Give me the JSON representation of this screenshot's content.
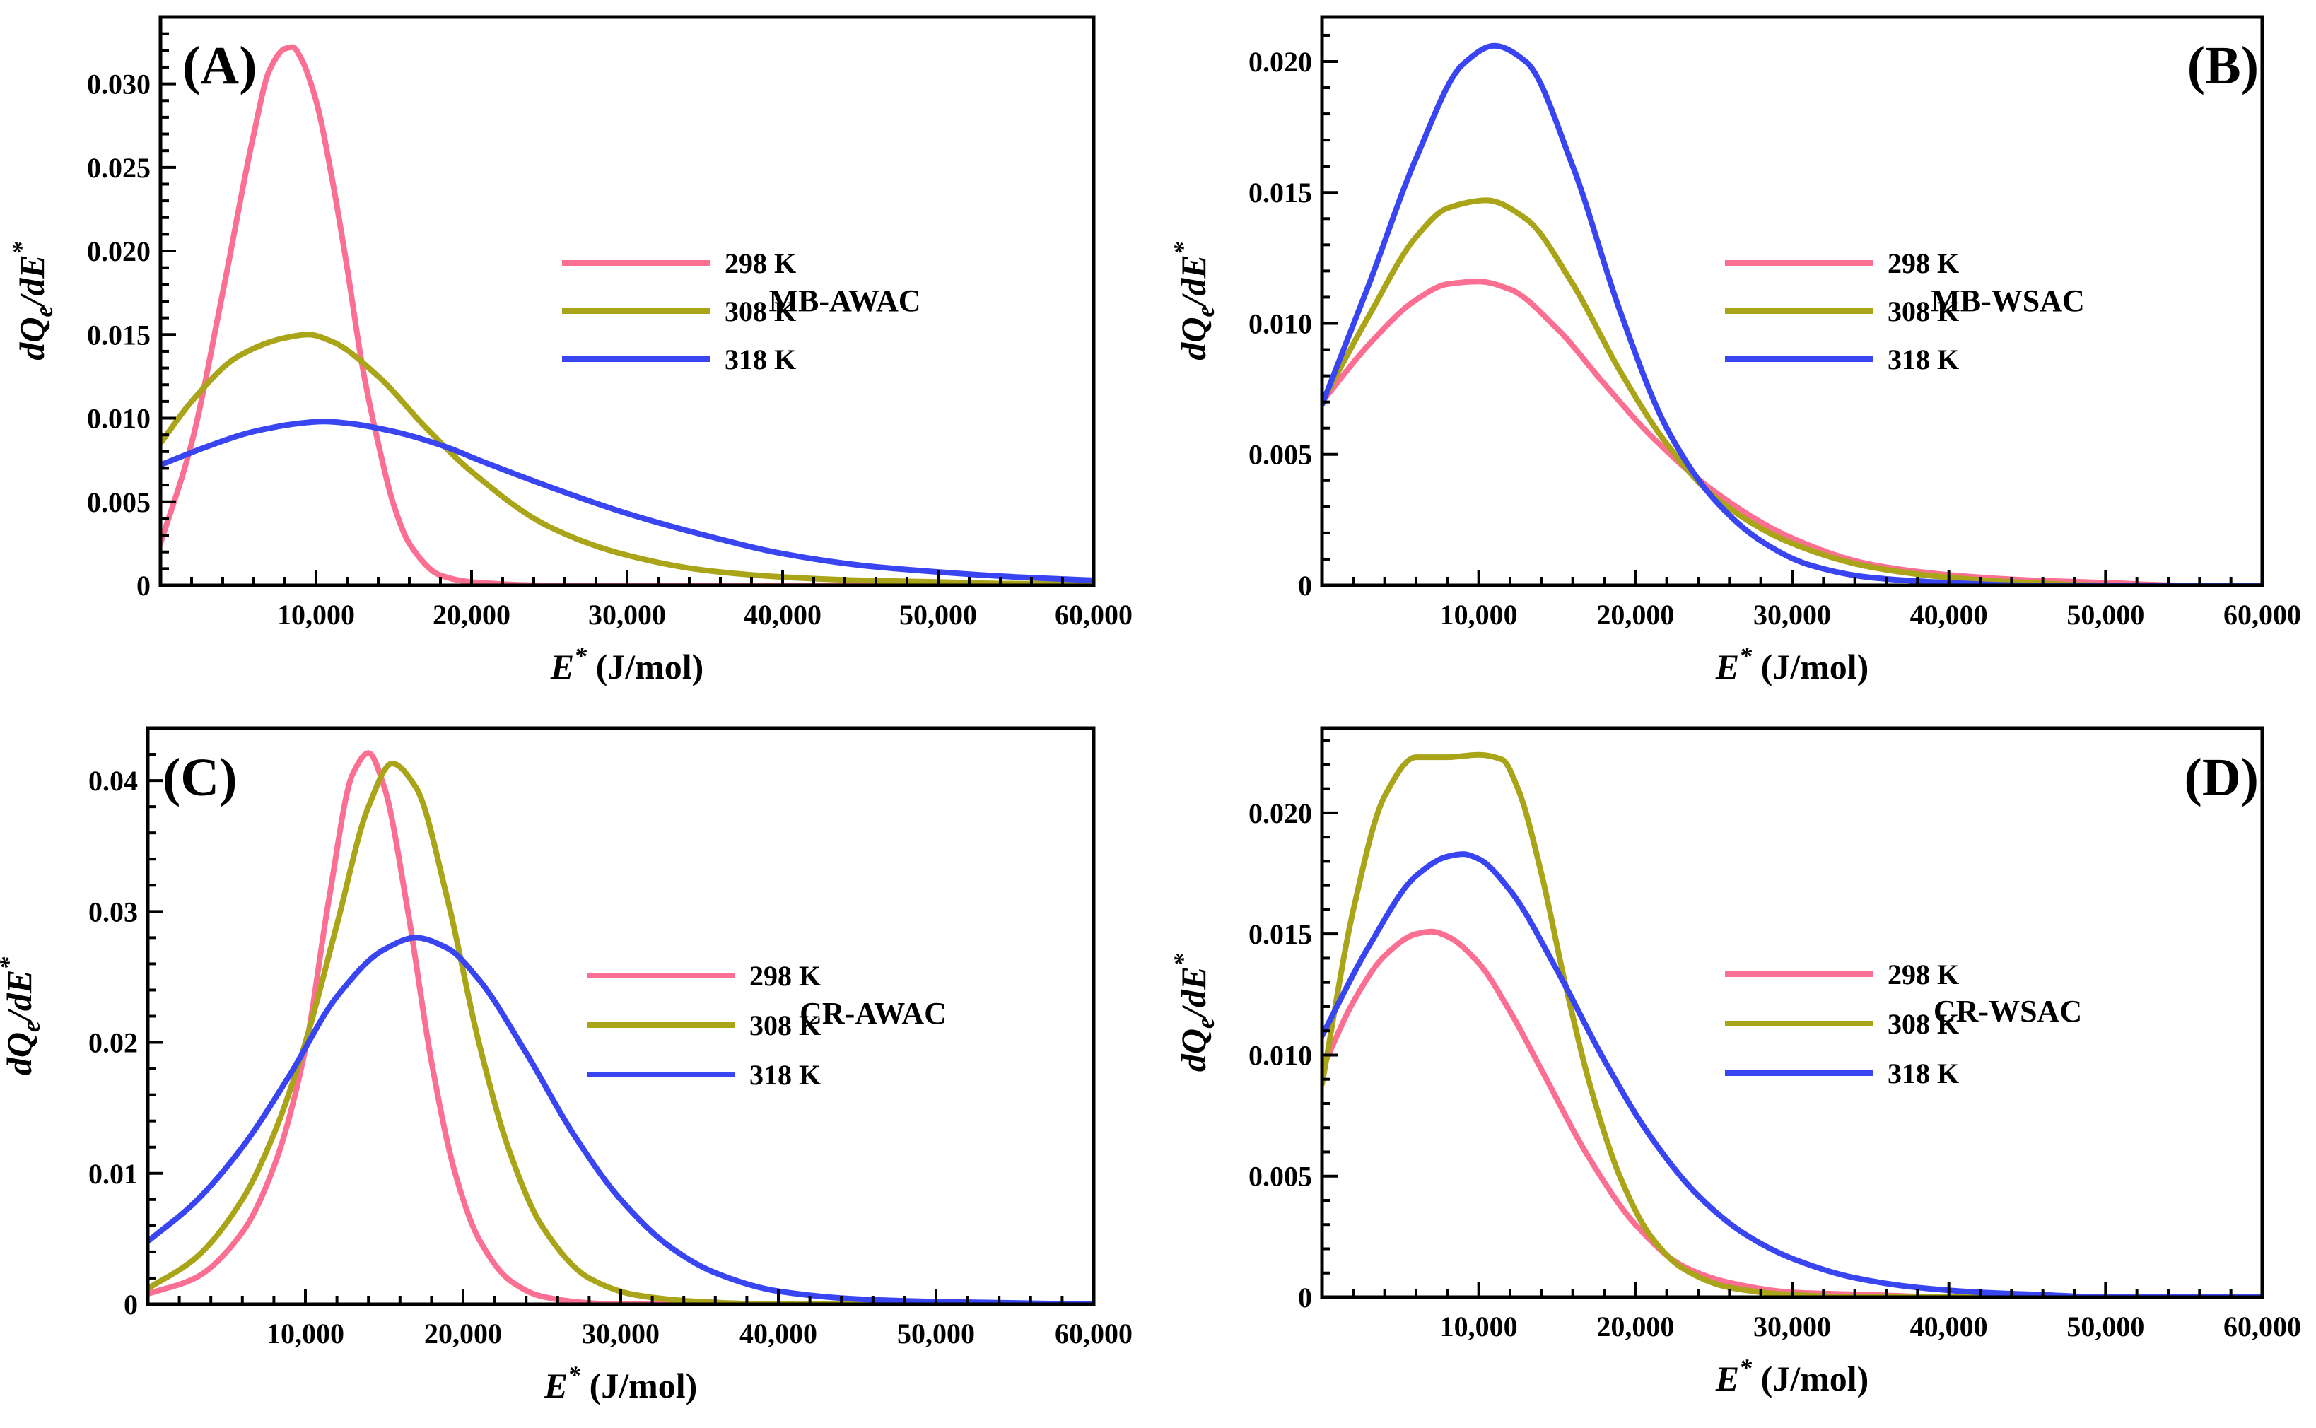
{
  "colors": {
    "298 K": "#fb6f92",
    "308 K": "#aaa418",
    "318 K": "#3a45f2",
    "axis": "#000000"
  },
  "chart_data": [
    {
      "type": "line",
      "panel": "(A)",
      "name": "MB-AWAC",
      "xlabel": {
        "main": "E",
        "sup": "*",
        "unit": " (J/mol)"
      },
      "ylabel": {
        "a": "dQ",
        "b": "e",
        "c": "/dE",
        "d": "*"
      },
      "xlim": [
        0,
        60000
      ],
      "ylim": [
        0,
        0.034
      ],
      "xticks": [
        10000,
        20000,
        30000,
        40000,
        50000,
        60000
      ],
      "xtick_labels": [
        "10,000",
        "20,000",
        "30,000",
        "40,000",
        "50,000",
        "60,000"
      ],
      "yticks": [
        0,
        0.005,
        0.01,
        0.015,
        0.02,
        0.025,
        0.03
      ],
      "ytick_labels": [
        "0",
        "0.005",
        "0.010",
        "0.015",
        "0.020",
        "0.025",
        "0.030"
      ],
      "legend": [
        "298 K",
        "308 K",
        "318 K"
      ],
      "series": [
        {
          "name": "298 K",
          "x": [
            0,
            2000,
            4000,
            6000,
            7000,
            8000,
            8500,
            9000,
            10000,
            11000,
            12000,
            13000,
            14000,
            15000,
            16000,
            18000,
            20000,
            25000,
            60000
          ],
          "y": [
            0.0025,
            0.0085,
            0.0175,
            0.027,
            0.0308,
            0.0321,
            0.0322,
            0.0316,
            0.029,
            0.0245,
            0.019,
            0.013,
            0.0085,
            0.0048,
            0.0025,
            0.0006,
            0.0002,
            0.0,
            0.0
          ]
        },
        {
          "name": "308 K",
          "x": [
            0,
            2000,
            5000,
            8000,
            9500,
            11000,
            14000,
            17000,
            20000,
            25000,
            30000,
            35000,
            40000,
            45000,
            50000,
            55000,
            60000
          ],
          "y": [
            0.0085,
            0.011,
            0.0137,
            0.0148,
            0.015,
            0.0146,
            0.0125,
            0.0095,
            0.0068,
            0.0035,
            0.0018,
            0.0009,
            0.0005,
            0.0003,
            0.0002,
            0.0001,
            0.0001
          ]
        },
        {
          "name": "318 K",
          "x": [
            0,
            3000,
            6000,
            9000,
            10500,
            12000,
            15000,
            18000,
            21000,
            25000,
            30000,
            35000,
            40000,
            45000,
            50000,
            55000,
            60000
          ],
          "y": [
            0.0072,
            0.0083,
            0.0092,
            0.0097,
            0.0098,
            0.0097,
            0.0092,
            0.0084,
            0.0073,
            0.0059,
            0.0043,
            0.003,
            0.0019,
            0.0012,
            0.0008,
            0.0005,
            0.0003
          ]
        }
      ]
    },
    {
      "type": "line",
      "panel": "(B)",
      "name": "MB-WSAC",
      "xlabel": {
        "main": "E",
        "sup": "*",
        "unit": " (J/mol)"
      },
      "ylabel": {
        "a": "dQ",
        "b": "e",
        "c": "/dE",
        "d": "*"
      },
      "xlim": [
        0,
        60000
      ],
      "ylim": [
        0,
        0.0217
      ],
      "xticks": [
        10000,
        20000,
        30000,
        40000,
        50000,
        60000
      ],
      "xtick_labels": [
        "10,000",
        "20,000",
        "30,000",
        "40,000",
        "50,000",
        "60,000"
      ],
      "yticks": [
        0,
        0.005,
        0.01,
        0.015,
        0.02
      ],
      "ytick_labels": [
        "0",
        "0.005",
        "0.010",
        "0.015",
        "0.020"
      ],
      "legend": [
        "298 K",
        "308 K",
        "318 K"
      ],
      "series": [
        {
          "name": "298 K",
          "x": [
            0,
            3000,
            6000,
            8000,
            10000,
            12000,
            15000,
            18000,
            21000,
            25000,
            30000,
            35000,
            40000,
            45000,
            50000,
            55000,
            60000
          ],
          "y": [
            0.007,
            0.0092,
            0.0109,
            0.0115,
            0.0116,
            0.0113,
            0.0098,
            0.0077,
            0.0057,
            0.0036,
            0.0018,
            0.0008,
            0.0004,
            0.0002,
            0.0001,
            0.0,
            0.0
          ]
        },
        {
          "name": "308 K",
          "x": [
            0,
            3000,
            6000,
            8000,
            10500,
            13000,
            16000,
            19000,
            22000,
            25000,
            30000,
            35000,
            40000,
            45000,
            50000,
            55000,
            60000
          ],
          "y": [
            0.007,
            0.0103,
            0.0133,
            0.0144,
            0.0147,
            0.014,
            0.0115,
            0.0082,
            0.0054,
            0.0034,
            0.0016,
            0.0007,
            0.0003,
            0.0001,
            0.0,
            0.0,
            0.0
          ]
        },
        {
          "name": "318 K",
          "x": [
            0,
            3000,
            6000,
            9000,
            11000,
            13000,
            16000,
            19000,
            22000,
            25000,
            28000,
            31000,
            35000,
            40000,
            45000,
            50000,
            55000,
            60000
          ],
          "y": [
            0.0069,
            0.0115,
            0.0163,
            0.0199,
            0.0206,
            0.02,
            0.016,
            0.0105,
            0.006,
            0.0033,
            0.0017,
            0.0008,
            0.0003,
            0.0001,
            0.0,
            0.0,
            0.0,
            0.0
          ]
        }
      ]
    },
    {
      "type": "line",
      "panel": "(C)",
      "name": "CR-AWAC",
      "xlabel": {
        "main": "E",
        "sup": "*",
        "unit": " (J/mol)"
      },
      "ylabel": {
        "a": "dQ",
        "b": "e",
        "c": "/dE",
        "d": "*"
      },
      "xlim": [
        0,
        60000
      ],
      "ylim": [
        0,
        0.044
      ],
      "xticks": [
        10000,
        20000,
        30000,
        40000,
        50000,
        60000
      ],
      "xtick_labels": [
        "10,000",
        "20,000",
        "30,000",
        "40,000",
        "50,000",
        "60,000"
      ],
      "yticks": [
        0,
        0.01,
        0.02,
        0.03,
        0.04
      ],
      "ytick_labels": [
        "0",
        "0.01",
        "0.02",
        "0.03",
        "0.04"
      ],
      "legend": [
        "298 K",
        "308 K",
        "318 K"
      ],
      "series": [
        {
          "name": "298 K",
          "x": [
            0,
            3000,
            6000,
            8000,
            10000,
            11500,
            13000,
            14000,
            15000,
            16500,
            18000,
            19500,
            21000,
            23000,
            25000,
            28000,
            30000,
            60000
          ],
          "y": [
            0.0008,
            0.002,
            0.0055,
            0.0105,
            0.0195,
            0.031,
            0.0405,
            0.0421,
            0.0395,
            0.03,
            0.0185,
            0.01,
            0.005,
            0.0018,
            0.0006,
            0.0001,
            0.0,
            0.0
          ]
        },
        {
          "name": "308 K",
          "x": [
            0,
            3000,
            6000,
            8000,
            10000,
            12000,
            14000,
            15500,
            17000,
            19000,
            21000,
            23000,
            25000,
            28000,
            31000,
            35000,
            40000,
            60000
          ],
          "y": [
            0.0012,
            0.0035,
            0.008,
            0.013,
            0.02,
            0.029,
            0.038,
            0.0413,
            0.0395,
            0.031,
            0.02,
            0.0115,
            0.006,
            0.002,
            0.0007,
            0.0002,
            0.0,
            0.0
          ]
        },
        {
          "name": "318 K",
          "x": [
            0,
            3000,
            6000,
            9000,
            12000,
            15000,
            17000,
            19000,
            21000,
            24000,
            27000,
            30000,
            33000,
            36000,
            40000,
            45000,
            50000,
            55000,
            60000
          ],
          "y": [
            0.0048,
            0.0078,
            0.012,
            0.0175,
            0.0235,
            0.0271,
            0.028,
            0.0272,
            0.0248,
            0.0192,
            0.013,
            0.008,
            0.0045,
            0.0024,
            0.001,
            0.0004,
            0.0002,
            0.0001,
            0.0
          ]
        }
      ]
    },
    {
      "type": "line",
      "panel": "(D)",
      "name": "CR-WSAC",
      "xlabel": {
        "main": "E",
        "sup": "*",
        "unit": " (J/mol)"
      },
      "ylabel": {
        "a": "dQ",
        "b": "e",
        "c": "/dE",
        "d": "*"
      },
      "xlim": [
        0,
        60000
      ],
      "ylim": [
        0,
        0.0235
      ],
      "xticks": [
        10000,
        20000,
        30000,
        40000,
        50000,
        60000
      ],
      "xtick_labels": [
        "10,000",
        "20,000",
        "30,000",
        "40,000",
        "50,000",
        "60,000"
      ],
      "yticks": [
        0,
        0.005,
        0.01,
        0.015,
        0.02
      ],
      "ytick_labels": [
        "0",
        "0.005",
        "0.010",
        "0.015",
        "0.020"
      ],
      "legend": [
        "298 K",
        "308 K",
        "318 K"
      ],
      "series": [
        {
          "name": "298 K",
          "x": [
            0,
            2000,
            4000,
            6000,
            7000,
            8000,
            10000,
            12000,
            14000,
            17000,
            20000,
            23000,
            26000,
            30000,
            35000,
            40000,
            45000,
            50000,
            60000
          ],
          "y": [
            0.0094,
            0.0122,
            0.0141,
            0.015,
            0.0151,
            0.0149,
            0.0138,
            0.0118,
            0.0094,
            0.0058,
            0.003,
            0.0013,
            0.0006,
            0.0002,
            0.0001,
            0.0,
            0.0,
            0.0,
            0.0
          ]
        },
        {
          "name": "308 K",
          "x": [
            0,
            2000,
            4000,
            6000,
            8000,
            10000,
            11500,
            12500,
            14000,
            15500,
            17000,
            19000,
            21000,
            23000,
            26000,
            30000,
            35000,
            60000
          ],
          "y": [
            0.0088,
            0.016,
            0.0207,
            0.0223,
            0.0223,
            0.0224,
            0.0222,
            0.021,
            0.0175,
            0.013,
            0.009,
            0.005,
            0.0025,
            0.0012,
            0.0004,
            0.0001,
            0.0,
            0.0
          ]
        },
        {
          "name": "318 K",
          "x": [
            0,
            3000,
            6000,
            8000,
            9000,
            10000,
            12000,
            15000,
            18000,
            21000,
            24000,
            27000,
            30000,
            34000,
            38000,
            42000,
            46000,
            50000,
            55000,
            60000
          ],
          "y": [
            0.0108,
            0.0145,
            0.0174,
            0.0182,
            0.0183,
            0.0181,
            0.0168,
            0.0135,
            0.0098,
            0.0066,
            0.0042,
            0.0026,
            0.0016,
            0.0008,
            0.0004,
            0.0002,
            0.0001,
            0.0,
            0.0,
            0.0
          ]
        }
      ]
    }
  ]
}
